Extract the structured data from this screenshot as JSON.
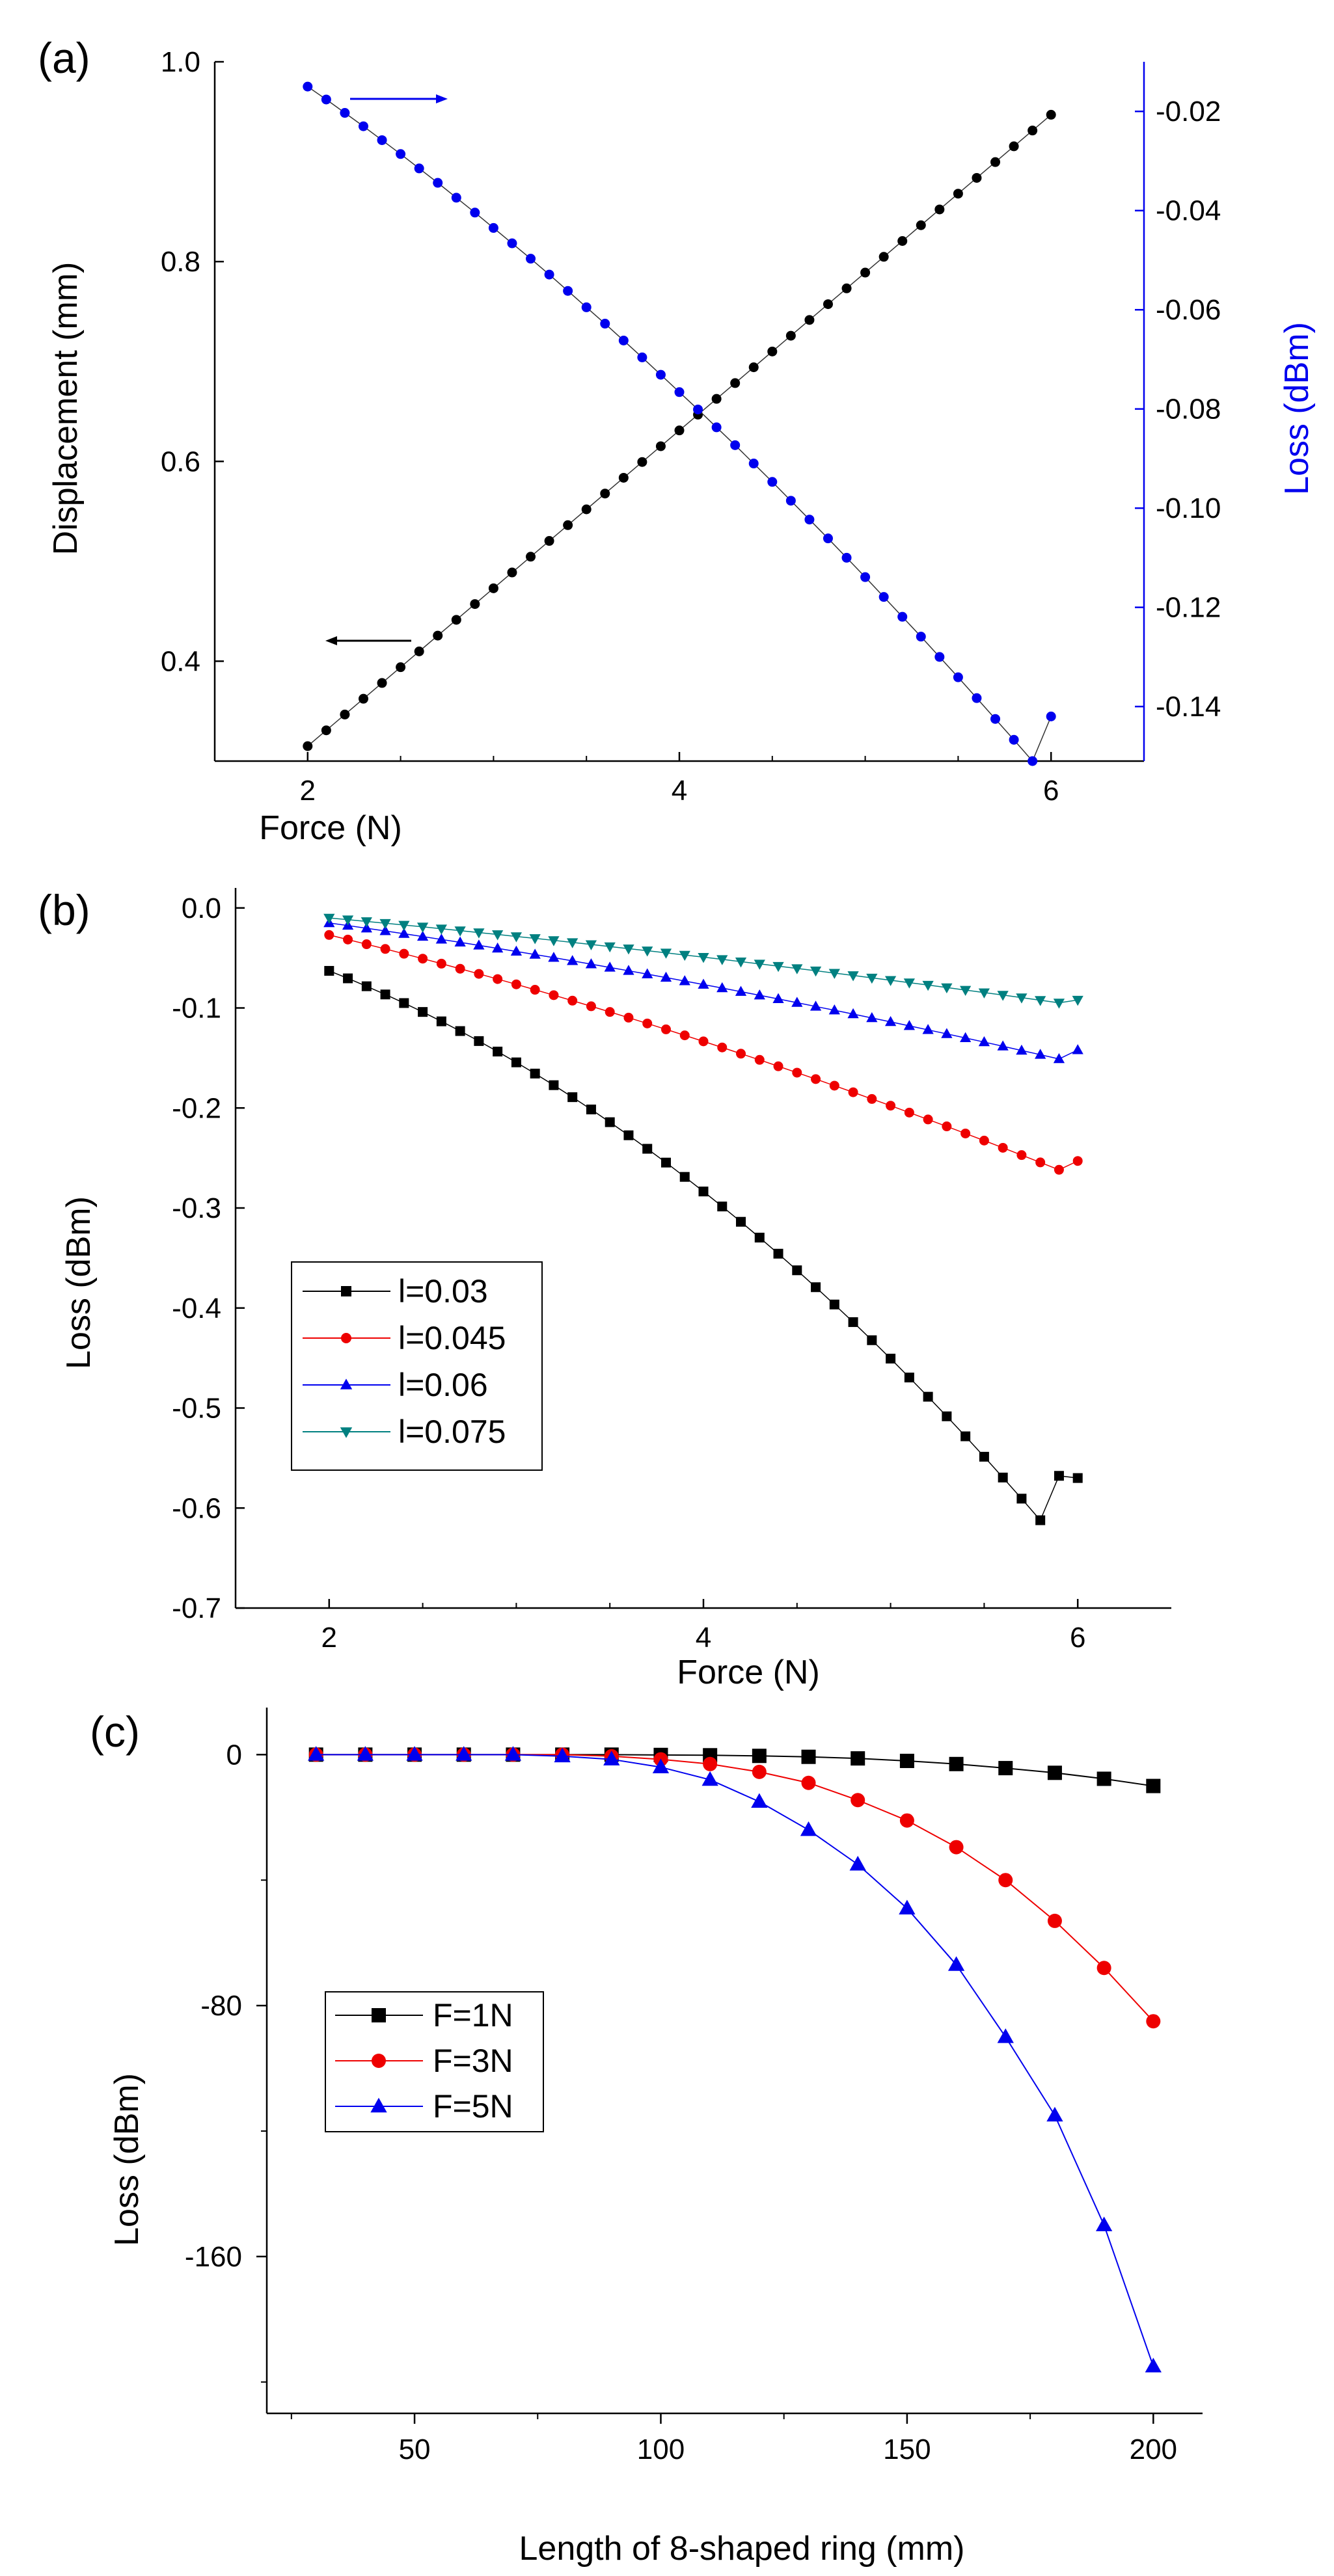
{
  "chart_data": [
    {
      "type": "scatter",
      "panel_label": "(a)",
      "xlabel": "Force (N)",
      "ylabel": "Displacement (mm)",
      "y2label": "Loss (dBm)",
      "xlim": [
        1.5,
        6.5
      ],
      "ylim": [
        0.3,
        1.0
      ],
      "y2lim": [
        -0.151,
        -0.01
      ],
      "xticks": [
        "2",
        "4",
        "6"
      ],
      "yticks": [
        "0.4",
        "0.6",
        "0.8",
        "1.0"
      ],
      "y2ticks": [
        "-0.02",
        "-0.04",
        "-0.06",
        "-0.08",
        "-0.10",
        "-0.12",
        "-0.14"
      ],
      "series": [
        {
          "name": "Displacement",
          "axis": "left",
          "color": "#000000",
          "marker": "circle",
          "x_range": [
            2,
            6,
            0.1
          ],
          "y": [
            0.315,
            0.3308,
            0.3466,
            0.3624,
            0.3782,
            0.394,
            0.4098,
            0.4256,
            0.4414,
            0.4572,
            0.473,
            0.4888,
            0.5046,
            0.5204,
            0.5362,
            0.552,
            0.5678,
            0.5836,
            0.5994,
            0.6152,
            0.631,
            0.6468,
            0.6626,
            0.6784,
            0.6942,
            0.71,
            0.7258,
            0.7416,
            0.7574,
            0.7732,
            0.789,
            0.8048,
            0.8206,
            0.8364,
            0.8522,
            0.868,
            0.8838,
            0.8996,
            0.9154,
            0.9312,
            0.947
          ]
        },
        {
          "name": "Loss",
          "axis": "right",
          "color": "#0000ee",
          "marker": "circle",
          "x_range": [
            2,
            6,
            0.1
          ],
          "y": [
            -0.015,
            -0.0176,
            -0.0203,
            -0.023,
            -0.0258,
            -0.0286,
            -0.0315,
            -0.0344,
            -0.0374,
            -0.0404,
            -0.0435,
            -0.0466,
            -0.0497,
            -0.0529,
            -0.0562,
            -0.0595,
            -0.0628,
            -0.0662,
            -0.0696,
            -0.0731,
            -0.0766,
            -0.0801,
            -0.0837,
            -0.0873,
            -0.091,
            -0.0947,
            -0.0985,
            -0.1023,
            -0.1061,
            -0.11,
            -0.1139,
            -0.1179,
            -0.1219,
            -0.1259,
            -0.13,
            -0.1341,
            -0.1383,
            -0.1425,
            -0.1467,
            -0.151,
            -0.142
          ]
        }
      ]
    },
    {
      "type": "scatter",
      "panel_label": "(b)",
      "xlabel": "Force (N)",
      "ylabel": "Loss (dBm)",
      "xlim": [
        1.5,
        6.5
      ],
      "ylim": [
        -0.7,
        0.02
      ],
      "xticks": [
        "2",
        "4",
        "6"
      ],
      "yticks": [
        "0.0",
        "-0.1",
        "-0.2",
        "-0.3",
        "-0.4",
        "-0.5",
        "-0.6",
        "-0.7"
      ],
      "legend": [
        "l=0.03",
        "l=0.045",
        "l=0.06",
        "l=0.075"
      ],
      "series": [
        {
          "name": "l=0.03",
          "color": "#000000",
          "marker": "square",
          "x_range": [
            2,
            6,
            0.1
          ],
          "y": [
            -0.0629,
            -0.0704,
            -0.0783,
            -0.0865,
            -0.0951,
            -0.104,
            -0.1134,
            -0.1231,
            -0.1331,
            -0.1436,
            -0.1544,
            -0.1656,
            -0.1772,
            -0.1892,
            -0.2015,
            -0.2142,
            -0.2273,
            -0.2408,
            -0.2546,
            -0.2689,
            -0.2835,
            -0.2985,
            -0.3138,
            -0.3296,
            -0.3457,
            -0.3623,
            -0.3792,
            -0.3965,
            -0.4141,
            -0.4322,
            -0.4506,
            -0.4695,
            -0.4887,
            -0.5083,
            -0.5283,
            -0.5487,
            -0.5695,
            -0.5906,
            -0.6122,
            -0.5678,
            -0.57
          ]
        },
        {
          "name": "l=0.045",
          "color": "#ee0000",
          "marker": "circle",
          "x_range": [
            2,
            6,
            0.1
          ],
          "y": [
            -0.027,
            -0.0316,
            -0.0363,
            -0.041,
            -0.0458,
            -0.0507,
            -0.0557,
            -0.0608,
            -0.0659,
            -0.0711,
            -0.0764,
            -0.0818,
            -0.0872,
            -0.0927,
            -0.0983,
            -0.104,
            -0.1097,
            -0.1155,
            -0.1214,
            -0.1274,
            -0.1334,
            -0.1395,
            -0.1457,
            -0.1519,
            -0.1583,
            -0.1647,
            -0.1711,
            -0.1777,
            -0.1843,
            -0.191,
            -0.1977,
            -0.2046,
            -0.2115,
            -0.2184,
            -0.2255,
            -0.2326,
            -0.2398,
            -0.2471,
            -0.2544,
            -0.2618,
            -0.253
          ]
        },
        {
          "name": "l=0.06",
          "color": "#0000ee",
          "marker": "triangle-up",
          "x_range": [
            2,
            6,
            0.1
          ],
          "y": [
            -0.015,
            -0.0176,
            -0.0203,
            -0.023,
            -0.0258,
            -0.0286,
            -0.0315,
            -0.0344,
            -0.0374,
            -0.0404,
            -0.0435,
            -0.0466,
            -0.0497,
            -0.0529,
            -0.0562,
            -0.0595,
            -0.0628,
            -0.0662,
            -0.0696,
            -0.0731,
            -0.0766,
            -0.0801,
            -0.0837,
            -0.0873,
            -0.091,
            -0.0947,
            -0.0985,
            -0.1023,
            -0.1061,
            -0.11,
            -0.1139,
            -0.1179,
            -0.1219,
            -0.1259,
            -0.13,
            -0.1341,
            -0.1383,
            -0.1425,
            -0.1467,
            -0.151,
            -0.142
          ]
        },
        {
          "name": "l=0.075",
          "color": "#008080",
          "marker": "triangle-down",
          "x_range": [
            2,
            6,
            0.1
          ],
          "y": [
            -0.01,
            -0.0117,
            -0.0135,
            -0.0153,
            -0.0171,
            -0.0189,
            -0.0208,
            -0.0227,
            -0.0246,
            -0.0265,
            -0.0285,
            -0.0304,
            -0.0324,
            -0.0345,
            -0.0365,
            -0.0386,
            -0.0407,
            -0.0428,
            -0.0449,
            -0.0471,
            -0.0492,
            -0.0514,
            -0.0537,
            -0.0559,
            -0.0582,
            -0.0605,
            -0.0628,
            -0.0651,
            -0.0675,
            -0.0699,
            -0.0723,
            -0.0747,
            -0.0771,
            -0.0796,
            -0.0821,
            -0.0846,
            -0.0871,
            -0.0897,
            -0.0923,
            -0.0949,
            -0.092
          ]
        }
      ]
    },
    {
      "type": "line",
      "panel_label": "(c)",
      "xlabel": "Length of 8-shaped ring (mm)",
      "ylabel": "Loss (dBm)",
      "xlim": [
        20,
        210
      ],
      "ylim": [
        -210,
        15
      ],
      "xticks": [
        "50",
        "100",
        "150",
        "200"
      ],
      "yticks": [
        "0",
        "-80",
        "-160"
      ],
      "legend": [
        "F=1N",
        "F=3N",
        "F=5N"
      ],
      "x": [
        30,
        40,
        50,
        60,
        70,
        80,
        90,
        100,
        110,
        120,
        130,
        140,
        150,
        160,
        170,
        180,
        190,
        200
      ],
      "series": [
        {
          "name": "F=1N",
          "color": "#000000",
          "marker": "square",
          "values": [
            0,
            0,
            0,
            0,
            0,
            0,
            0,
            -0.1,
            -0.2,
            -0.4,
            -0.7,
            -1.2,
            -2,
            -3,
            -4.3,
            -5.8,
            -7.7,
            -10
          ]
        },
        {
          "name": "F=3N",
          "color": "#ee0000",
          "marker": "circle",
          "values": [
            0,
            0,
            0,
            0,
            0,
            0,
            -0.5,
            -1.5,
            -3,
            -5.5,
            -9,
            -14.5,
            -21,
            -29.5,
            -40,
            -53,
            -68,
            -85
          ]
        },
        {
          "name": "F=5N",
          "color": "#0000ee",
          "marker": "triangle-up",
          "values": [
            0,
            0,
            0,
            0,
            0,
            -0.5,
            -1.5,
            -4,
            -8,
            -15,
            -24,
            -35,
            -49,
            -67,
            -90,
            -115,
            -150,
            -195
          ]
        }
      ]
    }
  ]
}
